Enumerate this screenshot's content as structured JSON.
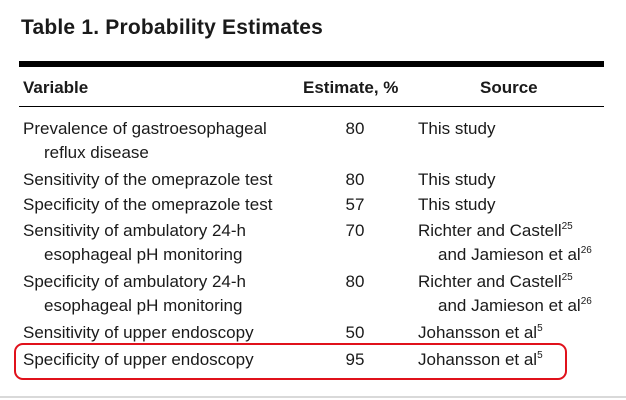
{
  "title": "Table 1. Probability Estimates",
  "headers": {
    "variable": "Variable",
    "estimate": "Estimate, %",
    "source": "Source"
  },
  "rows": [
    {
      "variable": [
        "Prevalence of gastroesophageal",
        "reflux disease"
      ],
      "estimate": "80",
      "source": "This study"
    },
    {
      "variable": [
        "Sensitivity of the omeprazole test"
      ],
      "estimate": "80",
      "source": "This study"
    },
    {
      "variable": [
        "Specificity of the omeprazole test"
      ],
      "estimate": "57",
      "source": "This study"
    },
    {
      "variable": [
        "Sensitivity of ambulatory 24-h",
        "esophageal pH monitoring"
      ],
      "estimate": "70",
      "source": "Richter and Castell",
      "source_ref": "25",
      "source_cont": "and Jamieson et al",
      "source_cont_ref": "26"
    },
    {
      "variable": [
        "Specificity of ambulatory 24-h",
        "esophageal pH monitoring"
      ],
      "estimate": "80",
      "source": "Richter and Castell",
      "source_ref": "25",
      "source_cont": "and Jamieson et al",
      "source_cont_ref": "26"
    },
    {
      "variable": [
        "Sensitivity of upper endoscopy"
      ],
      "estimate": "50",
      "source": "Johansson et al",
      "source_ref": "5"
    },
    {
      "variable": [
        "Specificity of upper endoscopy"
      ],
      "estimate": "95",
      "source": "Johansson et al",
      "source_ref": "5",
      "highlighted": true
    }
  ],
  "colors": {
    "highlight": "#e0111b",
    "rule": "#000000"
  }
}
